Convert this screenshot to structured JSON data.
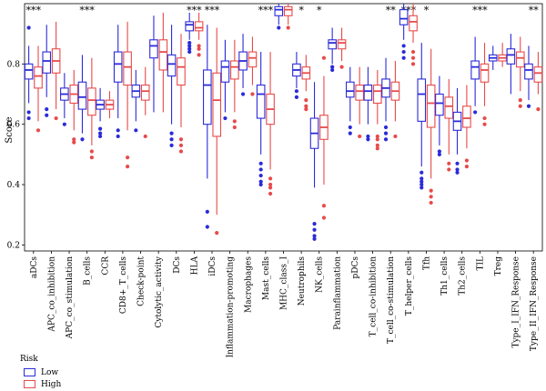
{
  "chart_data": {
    "type": "box",
    "ylabel": "Score",
    "ylim": [
      0.18,
      1.0
    ],
    "yticks": [
      0.2,
      0.4,
      0.6,
      0.8
    ],
    "categories": [
      "aDCs",
      "APC_co_inhibition",
      "APC_co_stimulation",
      "B_cells",
      "CCR",
      "CD8+_T_cells",
      "Check-point",
      "Cytolytic_activity",
      "DCs",
      "HLA",
      "iDCs",
      "Inflammation-promoting",
      "Macrophages",
      "Mast_cells",
      "MHC_class_I",
      "Neutrophils",
      "NK_cells",
      "Parainflammation",
      "pDCs",
      "T_cell_co-inhibition",
      "T_cell_co-stimulation",
      "T_helper_cells",
      "Tfh",
      "Th1_cells",
      "Th2_cells",
      "TIL",
      "Treg",
      "Type_I_IFN_Response",
      "Type_II_IFN_Response"
    ],
    "significance": [
      "***",
      "",
      "",
      "***",
      "",
      "",
      "",
      "",
      "",
      "***",
      "***",
      "",
      "",
      "***",
      "",
      "*",
      "*",
      "",
      "",
      "",
      "**",
      "***",
      "*",
      "",
      "",
      "***",
      "",
      "",
      "**"
    ],
    "series": [
      {
        "name": "Low",
        "color": "#2b2bd9",
        "boxes": [
          {
            "lw": 0.67,
            "q1": 0.75,
            "med": 0.78,
            "q3": 0.8,
            "uw": 0.86,
            "out": [
              0.64,
              0.62,
              0.92
            ]
          },
          {
            "lw": 0.69,
            "q1": 0.77,
            "med": 0.81,
            "q3": 0.84,
            "uw": 0.93,
            "out": [
              0.65,
              0.63
            ]
          },
          {
            "lw": 0.62,
            "q1": 0.68,
            "med": 0.7,
            "q3": 0.72,
            "uw": 0.77,
            "out": [
              0.6
            ]
          },
          {
            "lw": 0.57,
            "q1": 0.65,
            "med": 0.69,
            "q3": 0.74,
            "uw": 0.83,
            "out": [
              0.55
            ]
          },
          {
            "lw": 0.61,
            "q1": 0.65,
            "med": 0.665,
            "q3": 0.68,
            "uw": 0.72,
            "out": [
              0.585,
              0.57,
              0.56
            ]
          },
          {
            "lw": 0.62,
            "q1": 0.74,
            "med": 0.8,
            "q3": 0.84,
            "uw": 0.93,
            "out": [
              0.58,
              0.56
            ]
          },
          {
            "lw": 0.61,
            "q1": 0.69,
            "med": 0.71,
            "q3": 0.73,
            "uw": 0.78,
            "out": [
              0.58
            ]
          },
          {
            "lw": 0.64,
            "q1": 0.82,
            "med": 0.86,
            "q3": 0.88,
            "uw": 0.96,
            "out": []
          },
          {
            "lw": 0.6,
            "q1": 0.76,
            "med": 0.8,
            "q3": 0.83,
            "uw": 0.93,
            "out": [
              0.57,
              0.55,
              0.53
            ]
          },
          {
            "lw": 0.88,
            "q1": 0.91,
            "med": 0.93,
            "q3": 0.94,
            "uw": 0.97,
            "out": [
              0.87,
              0.86,
              0.85,
              0.84
            ]
          },
          {
            "lw": 0.42,
            "q1": 0.6,
            "med": 0.73,
            "q3": 0.78,
            "uw": 0.93,
            "out": [
              0.31,
              0.26
            ]
          },
          {
            "lw": 0.64,
            "q1": 0.74,
            "med": 0.79,
            "q3": 0.81,
            "uw": 0.88,
            "out": [
              0.62
            ]
          },
          {
            "lw": 0.72,
            "q1": 0.78,
            "med": 0.81,
            "q3": 0.84,
            "uw": 0.9,
            "out": [
              0.7
            ]
          },
          {
            "lw": 0.5,
            "q1": 0.62,
            "med": 0.7,
            "q3": 0.73,
            "uw": 0.84,
            "out": [
              0.47,
              0.45,
              0.43,
              0.41,
              0.4
            ]
          },
          {
            "lw": 0.93,
            "q1": 0.96,
            "med": 0.98,
            "q3": 0.99,
            "uw": 1.0,
            "out": [
              0.92
            ]
          },
          {
            "lw": 0.72,
            "q1": 0.76,
            "med": 0.78,
            "q3": 0.8,
            "uw": 0.84,
            "out": [
              0.71,
              0.69
            ]
          },
          {
            "lw": 0.39,
            "q1": 0.52,
            "med": 0.57,
            "q3": 0.62,
            "uw": 0.74,
            "out": [
              0.27,
              0.25,
              0.23,
              0.22
            ]
          },
          {
            "lw": 0.8,
            "q1": 0.85,
            "med": 0.87,
            "q3": 0.88,
            "uw": 0.92,
            "out": [
              0.79,
              0.78
            ]
          },
          {
            "lw": 0.61,
            "q1": 0.69,
            "med": 0.71,
            "q3": 0.74,
            "uw": 0.79,
            "out": [
              0.59,
              0.57
            ]
          },
          {
            "lw": 0.6,
            "q1": 0.68,
            "med": 0.71,
            "q3": 0.73,
            "uw": 0.79,
            "out": [
              0.56,
              0.55
            ]
          },
          {
            "lw": 0.61,
            "q1": 0.69,
            "med": 0.72,
            "q3": 0.75,
            "uw": 0.82,
            "out": [
              0.59,
              0.57,
              0.55
            ]
          },
          {
            "lw": 0.88,
            "q1": 0.93,
            "med": 0.95,
            "q3": 0.98,
            "uw": 1.0,
            "out": [
              0.86,
              0.84,
              0.82
            ]
          },
          {
            "lw": 0.46,
            "q1": 0.61,
            "med": 0.7,
            "q3": 0.75,
            "uw": 0.87,
            "out": [
              0.44,
              0.42,
              0.41,
              0.4,
              0.39
            ]
          },
          {
            "lw": 0.53,
            "q1": 0.63,
            "med": 0.67,
            "q3": 0.7,
            "uw": 0.76,
            "out": [
              0.51,
              0.5
            ]
          },
          {
            "lw": 0.5,
            "q1": 0.58,
            "med": 0.61,
            "q3": 0.64,
            "uw": 0.72,
            "out": [
              0.47,
              0.45,
              0.44
            ]
          },
          {
            "lw": 0.66,
            "q1": 0.75,
            "med": 0.79,
            "q3": 0.81,
            "uw": 0.89,
            "out": [
              0.64
            ]
          },
          {
            "lw": 0.78,
            "q1": 0.81,
            "med": 0.82,
            "q3": 0.83,
            "uw": 0.86,
            "out": []
          },
          {
            "lw": 0.7,
            "q1": 0.8,
            "med": 0.83,
            "q3": 0.85,
            "uw": 0.9,
            "out": []
          },
          {
            "lw": 0.68,
            "q1": 0.75,
            "med": 0.78,
            "q3": 0.8,
            "uw": 0.86,
            "out": [
              0.66
            ]
          }
        ]
      },
      {
        "name": "High",
        "color": "#e84a4a",
        "boxes": [
          {
            "lw": 0.61,
            "q1": 0.72,
            "med": 0.76,
            "q3": 0.79,
            "uw": 0.86,
            "out": [
              0.58
            ]
          },
          {
            "lw": 0.65,
            "q1": 0.77,
            "med": 0.81,
            "q3": 0.85,
            "uw": 0.94,
            "out": [
              0.62
            ]
          },
          {
            "lw": 0.58,
            "q1": 0.67,
            "med": 0.7,
            "q3": 0.73,
            "uw": 0.78,
            "out": [
              0.55,
              0.54
            ]
          },
          {
            "lw": 0.53,
            "q1": 0.63,
            "med": 0.68,
            "q3": 0.72,
            "uw": 0.82,
            "out": [
              0.51,
              0.49
            ]
          },
          {
            "lw": 0.62,
            "q1": 0.65,
            "med": 0.665,
            "q3": 0.68,
            "uw": 0.71,
            "out": []
          },
          {
            "lw": 0.58,
            "q1": 0.73,
            "med": 0.79,
            "q3": 0.84,
            "uw": 0.94,
            "out": [
              0.49,
              0.46
            ]
          },
          {
            "lw": 0.63,
            "q1": 0.68,
            "med": 0.71,
            "q3": 0.73,
            "uw": 0.79,
            "out": [
              0.56
            ]
          },
          {
            "lw": 0.64,
            "q1": 0.78,
            "med": 0.84,
            "q3": 0.88,
            "uw": 0.97,
            "out": []
          },
          {
            "lw": 0.59,
            "q1": 0.73,
            "med": 0.79,
            "q3": 0.82,
            "uw": 0.9,
            "out": [
              0.55,
              0.53,
              0.51
            ]
          },
          {
            "lw": 0.88,
            "q1": 0.91,
            "med": 0.92,
            "q3": 0.94,
            "uw": 0.97,
            "out": [
              0.86,
              0.85,
              0.83
            ]
          },
          {
            "lw": 0.3,
            "q1": 0.56,
            "med": 0.68,
            "q3": 0.77,
            "uw": 0.92,
            "out": [
              0.24
            ]
          },
          {
            "lw": 0.64,
            "q1": 0.75,
            "med": 0.79,
            "q3": 0.81,
            "uw": 0.88,
            "out": [
              0.61,
              0.59
            ]
          },
          {
            "lw": 0.73,
            "q1": 0.79,
            "med": 0.82,
            "q3": 0.84,
            "uw": 0.89,
            "out": [
              0.7
            ]
          },
          {
            "lw": 0.45,
            "q1": 0.6,
            "med": 0.65,
            "q3": 0.7,
            "uw": 0.84,
            "out": [
              0.42,
              0.4,
              0.39,
              0.37
            ]
          },
          {
            "lw": 0.93,
            "q1": 0.96,
            "med": 0.98,
            "q3": 0.99,
            "uw": 1.0,
            "out": [
              0.92
            ]
          },
          {
            "lw": 0.71,
            "q1": 0.75,
            "med": 0.77,
            "q3": 0.79,
            "uw": 0.83,
            "out": [
              0.68,
              0.66,
              0.65
            ]
          },
          {
            "lw": 0.4,
            "q1": 0.55,
            "med": 0.59,
            "q3": 0.63,
            "uw": 0.76,
            "out": [
              0.82,
              0.33,
              0.29
            ]
          },
          {
            "lw": 0.81,
            "q1": 0.85,
            "med": 0.87,
            "q3": 0.88,
            "uw": 0.92,
            "out": [
              0.79
            ]
          },
          {
            "lw": 0.6,
            "q1": 0.68,
            "med": 0.71,
            "q3": 0.73,
            "uw": 0.79,
            "out": [
              0.56
            ]
          },
          {
            "lw": 0.6,
            "q1": 0.67,
            "med": 0.71,
            "q3": 0.73,
            "uw": 0.78,
            "out": [
              0.56,
              0.55,
              0.53,
              0.52
            ]
          },
          {
            "lw": 0.61,
            "q1": 0.68,
            "med": 0.71,
            "q3": 0.74,
            "uw": 0.81,
            "out": [
              0.56
            ]
          },
          {
            "lw": 0.87,
            "q1": 0.91,
            "med": 0.94,
            "q3": 0.96,
            "uw": 1.0,
            "out": [
              0.84,
              0.82,
              0.8
            ]
          },
          {
            "lw": 0.42,
            "q1": 0.59,
            "med": 0.67,
            "q3": 0.73,
            "uw": 0.85,
            "out": [
              0.38,
              0.36,
              0.34
            ]
          },
          {
            "lw": 0.5,
            "q1": 0.62,
            "med": 0.66,
            "q3": 0.69,
            "uw": 0.75,
            "out": [
              0.47,
              0.45
            ]
          },
          {
            "lw": 0.52,
            "q1": 0.59,
            "med": 0.62,
            "q3": 0.66,
            "uw": 0.73,
            "out": [
              0.48,
              0.46
            ]
          },
          {
            "lw": 0.66,
            "q1": 0.74,
            "med": 0.78,
            "q3": 0.8,
            "uw": 0.87,
            "out": [
              0.62,
              0.6
            ]
          },
          {
            "lw": 0.79,
            "q1": 0.81,
            "med": 0.82,
            "q3": 0.83,
            "uw": 0.87,
            "out": []
          },
          {
            "lw": 0.71,
            "q1": 0.79,
            "med": 0.82,
            "q3": 0.84,
            "uw": 0.89,
            "out": [
              0.68,
              0.66
            ]
          },
          {
            "lw": 0.7,
            "q1": 0.74,
            "med": 0.77,
            "q3": 0.79,
            "uw": 0.84,
            "out": [
              0.65
            ]
          }
        ]
      }
    ],
    "legend": {
      "title": "Risk",
      "position": "bottom-left"
    }
  }
}
